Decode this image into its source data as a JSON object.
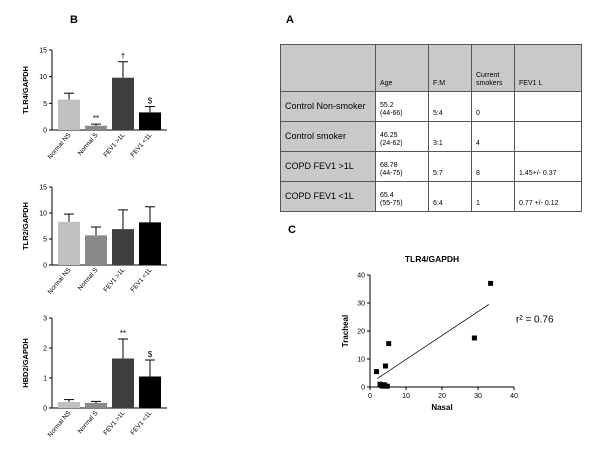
{
  "panels": {
    "B": "B",
    "A": "A",
    "C": "C"
  },
  "table": {
    "headers": [
      "",
      "Age",
      "F:M",
      "Current smokers",
      "FEV1 L"
    ],
    "rows": [
      {
        "label": "Control Non-smoker",
        "age": "55.2",
        "age_range": "(44-66)",
        "fm": "5:4",
        "smokers": "0",
        "fev1": ""
      },
      {
        "label": "Control smoker",
        "age": "46.25",
        "age_range": "(24-62)",
        "fm": "3:1",
        "smokers": "4",
        "fev1": ""
      },
      {
        "label": "COPD FEV1 >1L",
        "age": "68.78",
        "age_range": "(44-75)",
        "fm": "5:7",
        "smokers": "8",
        "fev1": "1.45+/- 0.37"
      },
      {
        "label": "COPD FEV1 <1L",
        "age": "65.4",
        "age_range": "(55-75)",
        "fm": "6:4",
        "smokers": "1",
        "fev1": "0.77 +/- 0.12"
      }
    ]
  },
  "chart_data": [
    {
      "type": "bar",
      "ylabel": "TLR4/GAPDH",
      "ylim": [
        0,
        15
      ],
      "yticks": [
        "0",
        "5",
        "10",
        "15"
      ],
      "categories": [
        "Normal NS",
        "Normal S",
        "FEV1 >1L",
        "FEV1 <1L"
      ],
      "values": [
        5.7,
        0.8,
        9.8,
        3.3
      ],
      "errors": [
        1.2,
        0.3,
        3.0,
        1.1
      ],
      "annotations": [
        "",
        "**",
        "†",
        "$"
      ],
      "colors": [
        "#c0c0c0",
        "#8a8a8a",
        "#3e3e3e",
        "#000000"
      ]
    },
    {
      "type": "bar",
      "ylabel": "TLR2/GAPDH",
      "ylim": [
        0,
        15
      ],
      "yticks": [
        "0",
        "5",
        "10",
        "15"
      ],
      "categories": [
        "Normal NS",
        "Normal S",
        "FEV1 >1L",
        "FEV1 <1L"
      ],
      "values": [
        8.3,
        5.7,
        6.9,
        8.2
      ],
      "errors": [
        1.5,
        1.6,
        3.7,
        3.0
      ],
      "annotations": [
        "",
        "",
        "",
        ""
      ],
      "colors": [
        "#c0c0c0",
        "#8a8a8a",
        "#3e3e3e",
        "#000000"
      ]
    },
    {
      "type": "bar",
      "ylabel": "HBD2/GAPDH",
      "ylim": [
        0,
        3
      ],
      "yticks": [
        "0",
        "1",
        "2",
        "3"
      ],
      "categories": [
        "Normal NS",
        "Normal S",
        "FEV1 >1L",
        "FEV1 <1L"
      ],
      "values": [
        0.2,
        0.17,
        1.65,
        1.05
      ],
      "errors": [
        0.08,
        0.05,
        0.65,
        0.55
      ],
      "annotations": [
        "",
        "",
        "**",
        "$"
      ],
      "colors": [
        "#c0c0c0",
        "#8a8a8a",
        "#3e3e3e",
        "#000000"
      ]
    },
    {
      "type": "scatter",
      "title": "TLR4/GAPDH",
      "xlabel": "Nasal",
      "ylabel": "Tracheal",
      "xlim": [
        0,
        40
      ],
      "ylim": [
        0,
        40
      ],
      "xticks": [
        "0",
        "10",
        "20",
        "30",
        "40"
      ],
      "yticks": [
        "0",
        "10",
        "20",
        "30",
        "40"
      ],
      "points": [
        [
          1.8,
          5.5
        ],
        [
          2.8,
          1.0
        ],
        [
          3.2,
          0.5
        ],
        [
          3.6,
          0.3
        ],
        [
          4.0,
          0.8
        ],
        [
          4.3,
          7.5
        ],
        [
          4.8,
          0.3
        ],
        [
          5.2,
          15.5
        ],
        [
          29.0,
          17.5
        ],
        [
          33.5,
          37.0
        ]
      ],
      "fit_line": [
        [
          2.0,
          3.0
        ],
        [
          33.0,
          29.5
        ]
      ],
      "annotation": "r² = 0.76"
    }
  ]
}
